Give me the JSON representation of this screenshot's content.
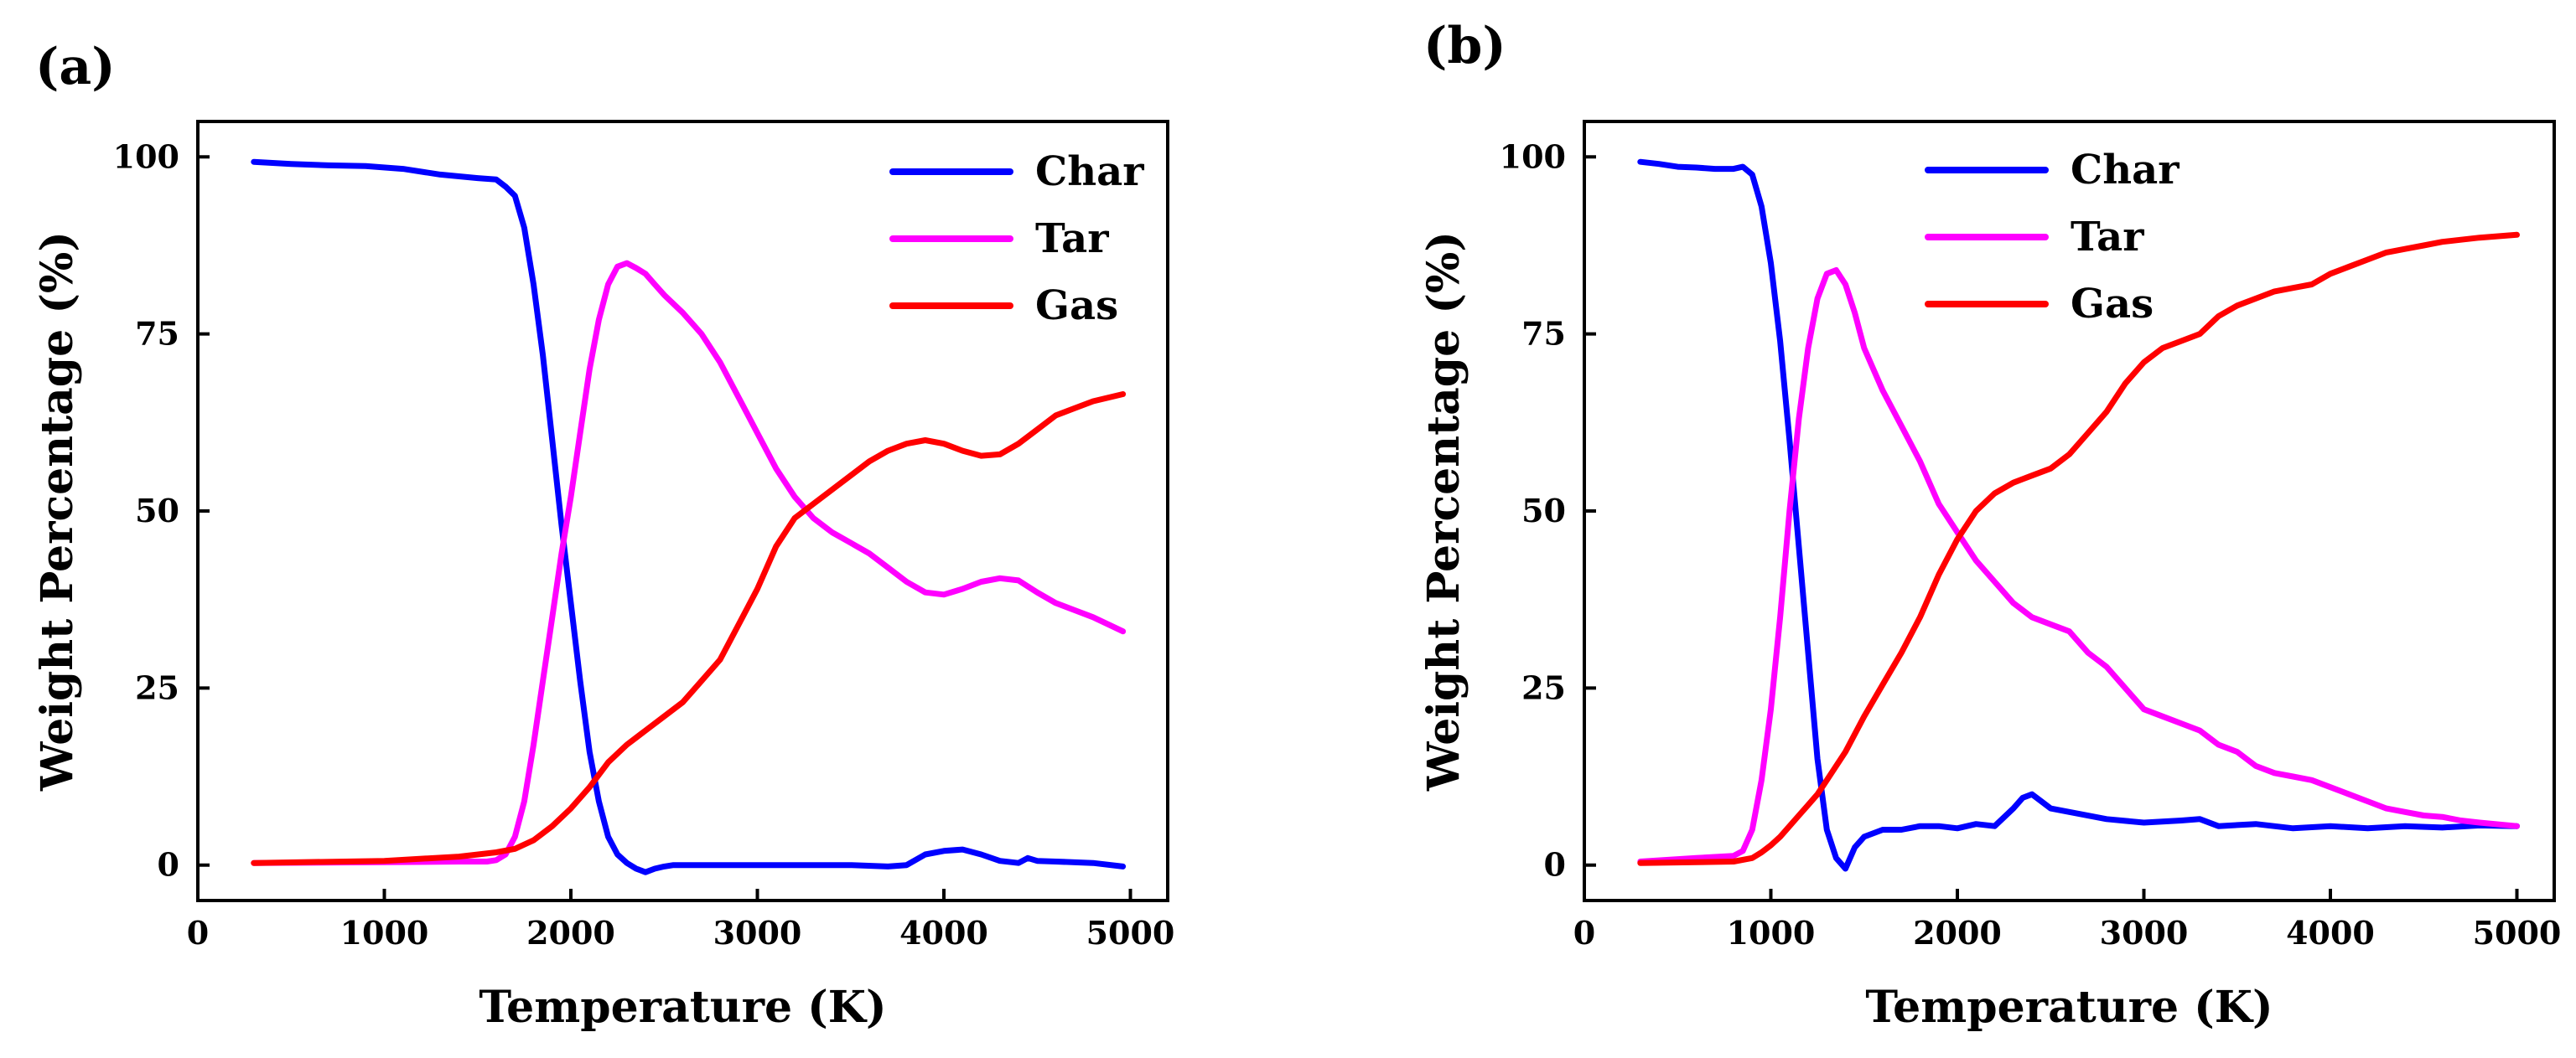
{
  "figure": {
    "panels": [
      "(a)",
      "(b)"
    ]
  },
  "chart_data": [
    {
      "panel_label": "(a)",
      "type": "line",
      "xlabel": "Temperature (K)",
      "ylabel": "Weight Percentage (%)",
      "xlim": [
        0,
        5200
      ],
      "ylim": [
        -5,
        105
      ],
      "xticks": [
        0,
        1000,
        2000,
        3000,
        4000,
        5000
      ],
      "yticks": [
        0,
        25,
        50,
        75,
        100
      ],
      "grid": false,
      "legend_position": "top-right",
      "series": [
        {
          "name": "Char",
          "color": "#0000ff",
          "x": [
            300,
            500,
            700,
            900,
            1100,
            1300,
            1500,
            1600,
            1650,
            1700,
            1750,
            1800,
            1850,
            1900,
            1950,
            2000,
            2050,
            2100,
            2150,
            2200,
            2250,
            2300,
            2350,
            2400,
            2450,
            2500,
            2550,
            2600,
            3000,
            3500,
            3700,
            3800,
            3900,
            4000,
            4100,
            4200,
            4300,
            4400,
            4450,
            4500,
            4600,
            4800,
            4960
          ],
          "y": [
            99.3,
            99,
            98.8,
            98.7,
            98.3,
            97.5,
            97,
            96.8,
            95.8,
            94.5,
            90,
            82,
            72,
            60,
            48,
            37,
            26,
            16,
            9,
            4,
            1.5,
            0.3,
            -0.5,
            -1,
            -0.5,
            -0.2,
            0,
            0,
            0,
            0,
            -0.2,
            0,
            1.5,
            2,
            2.2,
            1.5,
            0.6,
            0.3,
            1,
            0.6,
            0.5,
            0.3,
            -0.2
          ]
        },
        {
          "name": "Tar",
          "color": "#ff00ff",
          "x": [
            300,
            1000,
            1400,
            1550,
            1600,
            1650,
            1700,
            1750,
            1800,
            1850,
            1900,
            1950,
            2000,
            2050,
            2100,
            2150,
            2200,
            2250,
            2300,
            2350,
            2400,
            2450,
            2500,
            2600,
            2700,
            2800,
            2900,
            3000,
            3100,
            3200,
            3300,
            3400,
            3500,
            3600,
            3700,
            3800,
            3900,
            4000,
            4100,
            4200,
            4300,
            4400,
            4500,
            4600,
            4700,
            4800,
            4960
          ],
          "y": [
            0.3,
            0.4,
            0.5,
            0.5,
            0.7,
            1.5,
            4,
            9,
            17,
            26,
            35,
            44,
            52,
            61,
            70,
            77,
            82,
            84.5,
            85,
            84.3,
            83.5,
            82,
            80.5,
            78,
            75,
            71,
            66,
            61,
            56,
            52,
            49,
            47,
            45.5,
            44,
            42,
            40,
            38.5,
            38.2,
            39,
            40,
            40.5,
            40.2,
            38.5,
            37,
            36,
            35,
            33
          ]
        },
        {
          "name": "Gas",
          "color": "#ff0000",
          "x": [
            300,
            1000,
            1400,
            1600,
            1700,
            1800,
            1900,
            2000,
            2100,
            2200,
            2300,
            2400,
            2500,
            2600,
            2700,
            2800,
            2900,
            3000,
            3100,
            3200,
            3300,
            3400,
            3500,
            3600,
            3700,
            3800,
            3900,
            4000,
            4100,
            4200,
            4300,
            4400,
            4500,
            4600,
            4700,
            4800,
            4960
          ],
          "y": [
            0.3,
            0.6,
            1.2,
            1.8,
            2.3,
            3.5,
            5.5,
            8,
            11,
            14.5,
            17,
            19,
            21,
            23,
            26,
            29,
            34,
            39,
            45,
            49,
            51,
            53,
            55,
            57,
            58.5,
            59.5,
            60,
            59.5,
            58.5,
            57.8,
            58,
            59.5,
            61.5,
            63.5,
            64.5,
            65.5,
            66.5
          ]
        }
      ]
    },
    {
      "panel_label": "(b)",
      "type": "line",
      "xlabel": "Temperature (K)",
      "ylabel": "Weight Percentage (%)",
      "xlim": [
        0,
        5200
      ],
      "ylim": [
        -5,
        105
      ],
      "xticks": [
        0,
        1000,
        2000,
        3000,
        4000,
        5000
      ],
      "yticks": [
        0,
        25,
        50,
        75,
        100
      ],
      "grid": false,
      "legend_position": "top-center",
      "series": [
        {
          "name": "Char",
          "color": "#0000ff",
          "x": [
            300,
            400,
            500,
            600,
            700,
            800,
            850,
            900,
            950,
            1000,
            1050,
            1100,
            1150,
            1200,
            1250,
            1300,
            1350,
            1400,
            1450,
            1500,
            1600,
            1700,
            1800,
            1900,
            2000,
            2100,
            2200,
            2300,
            2350,
            2400,
            2450,
            2500,
            2600,
            2800,
            3000,
            3200,
            3300,
            3400,
            3600,
            3800,
            4000,
            4200,
            4400,
            4600,
            4800,
            5000
          ],
          "y": [
            99.3,
            99,
            98.6,
            98.5,
            98.3,
            98.3,
            98.6,
            97.5,
            93,
            85,
            74,
            60,
            45,
            30,
            15,
            5,
            1,
            -0.5,
            2.5,
            4,
            5,
            5,
            5.5,
            5.5,
            5.2,
            5.8,
            5.5,
            8,
            9.5,
            10,
            9,
            8,
            7.5,
            6.5,
            6,
            6.3,
            6.5,
            5.5,
            5.8,
            5.2,
            5.5,
            5.2,
            5.5,
            5.3,
            5.6,
            5.5
          ]
        },
        {
          "name": "Tar",
          "color": "#ff00ff",
          "x": [
            300,
            600,
            800,
            850,
            900,
            950,
            1000,
            1050,
            1100,
            1150,
            1200,
            1250,
            1300,
            1350,
            1400,
            1450,
            1500,
            1600,
            1700,
            1800,
            1900,
            2000,
            2100,
            2200,
            2300,
            2400,
            2500,
            2600,
            2700,
            2800,
            2900,
            3000,
            3100,
            3200,
            3300,
            3400,
            3500,
            3600,
            3700,
            3800,
            3900,
            4000,
            4100,
            4200,
            4300,
            4400,
            4500,
            4600,
            4700,
            4800,
            5000
          ],
          "y": [
            0.5,
            1,
            1.3,
            2,
            5,
            12,
            22,
            35,
            50,
            63,
            73,
            80,
            83.5,
            84,
            82,
            78,
            73,
            67,
            62,
            57,
            51,
            47,
            43,
            40,
            37,
            35,
            34,
            33,
            30,
            28,
            25,
            22,
            21,
            20,
            19,
            17,
            16,
            14,
            13,
            12.5,
            12,
            11,
            10,
            9,
            8,
            7.5,
            7,
            6.8,
            6.3,
            6,
            5.5
          ]
        },
        {
          "name": "Gas",
          "color": "#ff0000",
          "x": [
            300,
            600,
            800,
            900,
            950,
            1000,
            1050,
            1100,
            1150,
            1200,
            1250,
            1300,
            1400,
            1500,
            1600,
            1700,
            1800,
            1900,
            2000,
            2100,
            2200,
            2300,
            2400,
            2500,
            2600,
            2700,
            2800,
            2900,
            3000,
            3100,
            3200,
            3300,
            3400,
            3500,
            3600,
            3700,
            3800,
            3900,
            4000,
            4100,
            4200,
            4300,
            4400,
            4500,
            4600,
            4700,
            4800,
            5000
          ],
          "y": [
            0.3,
            0.4,
            0.5,
            1,
            1.8,
            2.8,
            4,
            5.5,
            7,
            8.5,
            10,
            12,
            16,
            21,
            25.5,
            30,
            35,
            41,
            46,
            50,
            52.5,
            54,
            55,
            56,
            58,
            61,
            64,
            68,
            71,
            73,
            74,
            75,
            77.5,
            79,
            80,
            81,
            81.5,
            82,
            83.5,
            84.5,
            85.5,
            86.5,
            87,
            87.5,
            88,
            88.3,
            88.6,
            89
          ]
        }
      ]
    }
  ]
}
